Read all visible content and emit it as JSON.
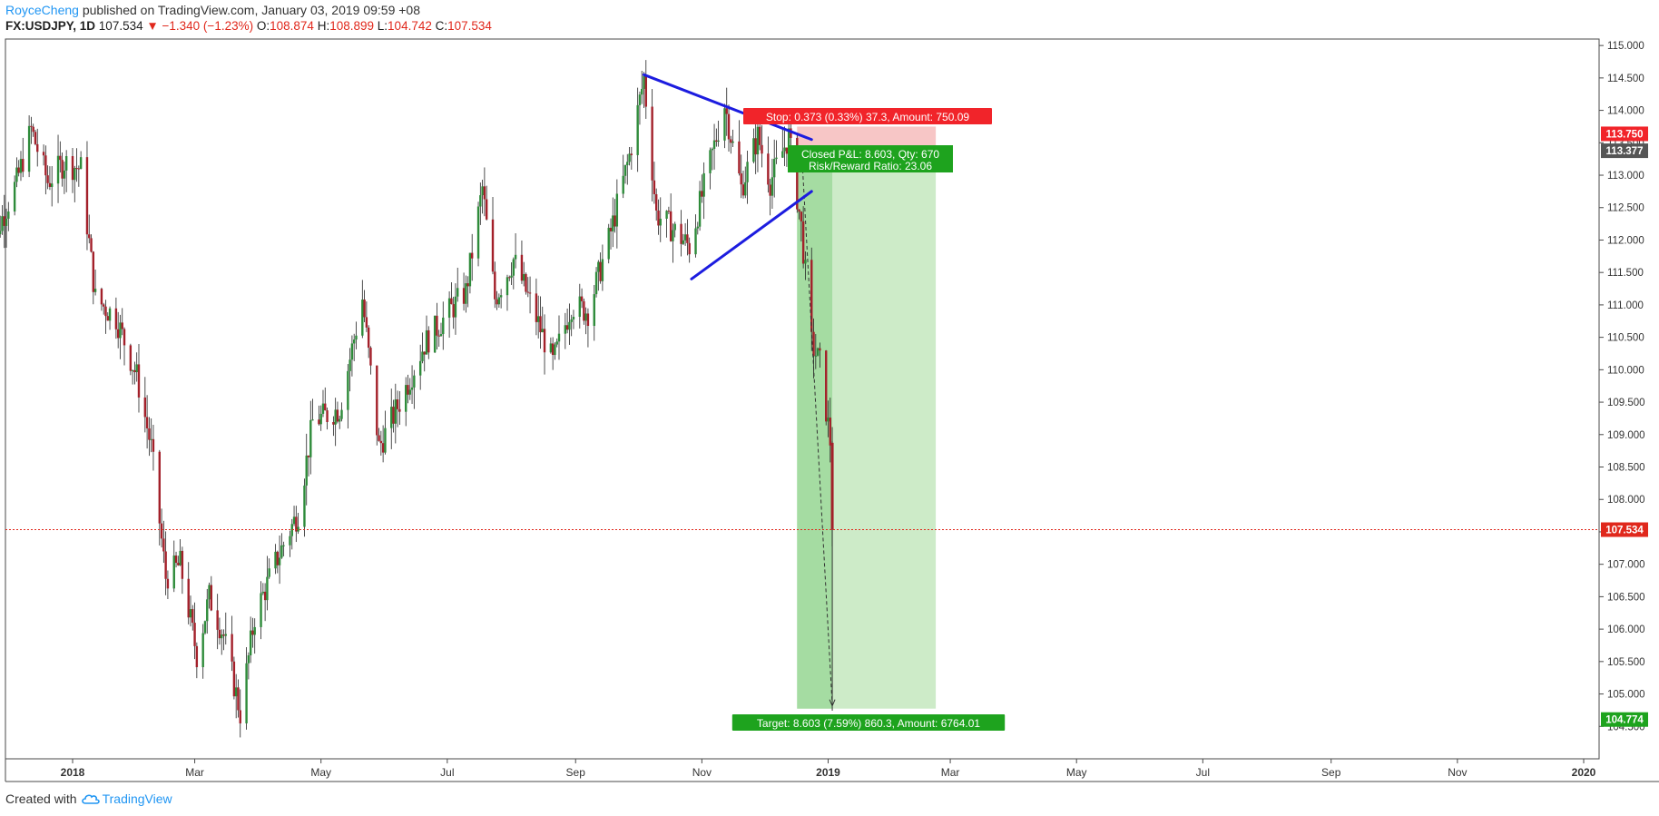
{
  "header": {
    "author": "RoyceCheng",
    "published_text": " published on TradingView.com, January 03, 2019 09:59 +08",
    "symbol": "FX:USDJPY, 1D",
    "last": "107.534",
    "change": "−1.340 (−1.23%)",
    "o_label": "O:",
    "o_value": "108.874",
    "h_label": "H:",
    "h_value": "108.899",
    "l_label": "L:",
    "l_value": "104.742",
    "c_label": "C:",
    "c_value": "107.534"
  },
  "footer": {
    "created_with": "Created with",
    "brand": "TradingView",
    "brand_icon": "cloud-icon"
  },
  "colors": {
    "up_candle": "#2e8b3a",
    "down_candle": "#a3202a",
    "trend_line": "#1c1cdf",
    "stop_zone": "#f7c6c6",
    "target_zone": "#cdebc8",
    "target_zone_dark": "#a5dca2",
    "stop_label": "#f1242a",
    "target_label": "#1ea31e",
    "last_price_line": "#e0281c",
    "current_badge": "#555555"
  },
  "chart_data": {
    "type": "candlestick",
    "symbol": "FX:USDJPY",
    "interval": "1D",
    "y_range": [
      104.0,
      115.1
    ],
    "y_ticks": [
      "115.000",
      "114.500",
      "114.000",
      "113.500",
      "113.000",
      "112.500",
      "112.000",
      "111.500",
      "111.000",
      "110.500",
      "110.000",
      "109.500",
      "109.000",
      "108.500",
      "108.000",
      "107.500",
      "107.000",
      "106.500",
      "106.000",
      "105.500",
      "105.000",
      "104.500"
    ],
    "x_ticks": [
      "2018",
      "Mar",
      "May",
      "Jul",
      "Sep",
      "Nov",
      "2019",
      "Mar",
      "May",
      "Jul",
      "Sep",
      "Nov",
      "2020"
    ],
    "price_path": [
      [
        "2017-11-20",
        111.7
      ],
      [
        "2017-12-05",
        112.9
      ],
      [
        "2017-12-12",
        113.7
      ],
      [
        "2017-12-20",
        112.9
      ],
      [
        "2017-12-28",
        113.2
      ],
      [
        "2018-01-05",
        113.1
      ],
      [
        "2018-01-12",
        111.1
      ],
      [
        "2018-01-22",
        110.8
      ],
      [
        "2018-02-01",
        109.9
      ],
      [
        "2018-02-08",
        108.8
      ],
      [
        "2018-02-15",
        106.8
      ],
      [
        "2018-02-22",
        107.0
      ],
      [
        "2018-03-02",
        105.6
      ],
      [
        "2018-03-08",
        106.5
      ],
      [
        "2018-03-15",
        105.9
      ],
      [
        "2018-03-23",
        104.7
      ],
      [
        "2018-03-30",
        106.2
      ],
      [
        "2018-04-10",
        107.1
      ],
      [
        "2018-04-20",
        107.8
      ],
      [
        "2018-04-27",
        109.2
      ],
      [
        "2018-05-10",
        109.4
      ],
      [
        "2018-05-21",
        111.1
      ],
      [
        "2018-05-29",
        108.8
      ],
      [
        "2018-06-08",
        109.5
      ],
      [
        "2018-06-20",
        110.4
      ],
      [
        "2018-07-02",
        110.9
      ],
      [
        "2018-07-10",
        111.2
      ],
      [
        "2018-07-18",
        112.8
      ],
      [
        "2018-07-24",
        111.1
      ],
      [
        "2018-08-02",
        111.7
      ],
      [
        "2018-08-13",
        110.8
      ],
      [
        "2018-08-21",
        110.1
      ],
      [
        "2018-08-30",
        111.0
      ],
      [
        "2018-09-07",
        110.9
      ],
      [
        "2018-09-17",
        112.0
      ],
      [
        "2018-09-27",
        113.3
      ],
      [
        "2018-10-04",
        114.5
      ],
      [
        "2018-10-10",
        112.4
      ],
      [
        "2018-10-17",
        112.2
      ],
      [
        "2018-10-26",
        111.9
      ],
      [
        "2018-11-05",
        113.2
      ],
      [
        "2018-11-12",
        114.1
      ],
      [
        "2018-11-20",
        112.8
      ],
      [
        "2018-11-28",
        113.6
      ],
      [
        "2018-12-04",
        112.9
      ],
      [
        "2018-12-13",
        113.6
      ],
      [
        "2018-12-19",
        112.2
      ],
      [
        "2018-12-24",
        110.4
      ],
      [
        "2018-12-28",
        110.1
      ],
      [
        "2019-01-02",
        108.9
      ],
      [
        "2019-01-03",
        107.534
      ]
    ],
    "last_price": "107.534",
    "current_price_badge": "113.377",
    "trend_lines": [
      {
        "from": [
          "2018-10-04",
          114.55
        ],
        "to": [
          "2018-12-24",
          113.55
        ]
      },
      {
        "from": [
          "2018-10-27",
          111.4
        ],
        "to": [
          "2018-12-24",
          112.75
        ]
      }
    ],
    "position": {
      "type": "long",
      "entry_date": "2018-12-17",
      "end_date": "2019-02-22",
      "exit_date": "2019-01-03",
      "entry_price": 113.377,
      "stop_price": 113.75,
      "target_price": 104.774,
      "stop_badge": "113.750",
      "target_badge": "104.774",
      "stop_label": "Stop: 0.373 (0.33%) 37.3, Amount: 750.09",
      "closed_label": "Closed P&L: 8.603, Qty: 670",
      "rr_label": "Risk/Reward Ratio: 23.06",
      "target_label": "Target: 8.603 (7.59%) 860.3, Amount: 6764.01"
    }
  }
}
